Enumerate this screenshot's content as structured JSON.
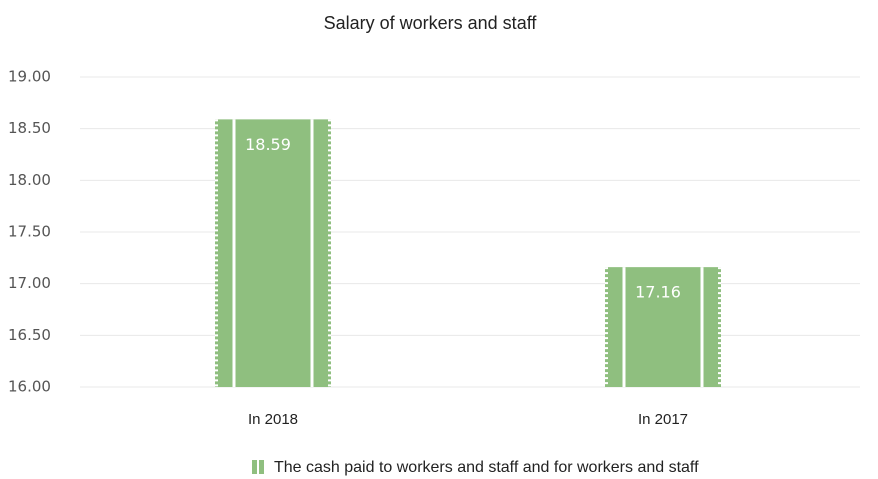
{
  "chart_data": {
    "type": "bar",
    "title": "Salary of workers and staff",
    "categories": [
      "In 2018",
      "In 2017"
    ],
    "series": [
      {
        "name": "The cash paid to workers and staff and for workers and staff",
        "color": "#8fbf7f",
        "values": [
          18.59,
          17.16
        ]
      }
    ],
    "ylim": [
      16,
      19
    ],
    "yticks": [
      {
        "value": 16,
        "label": "16.00"
      },
      {
        "value": 16.5,
        "label": "16.50"
      },
      {
        "value": 17,
        "label": "17.00"
      },
      {
        "value": 17.5,
        "label": "17.50"
      },
      {
        "value": 18,
        "label": "18.00"
      },
      {
        "value": 18.5,
        "label": "18.50"
      },
      {
        "value": 19,
        "label": "19.00"
      }
    ],
    "grid": true,
    "legend": "bottom"
  }
}
